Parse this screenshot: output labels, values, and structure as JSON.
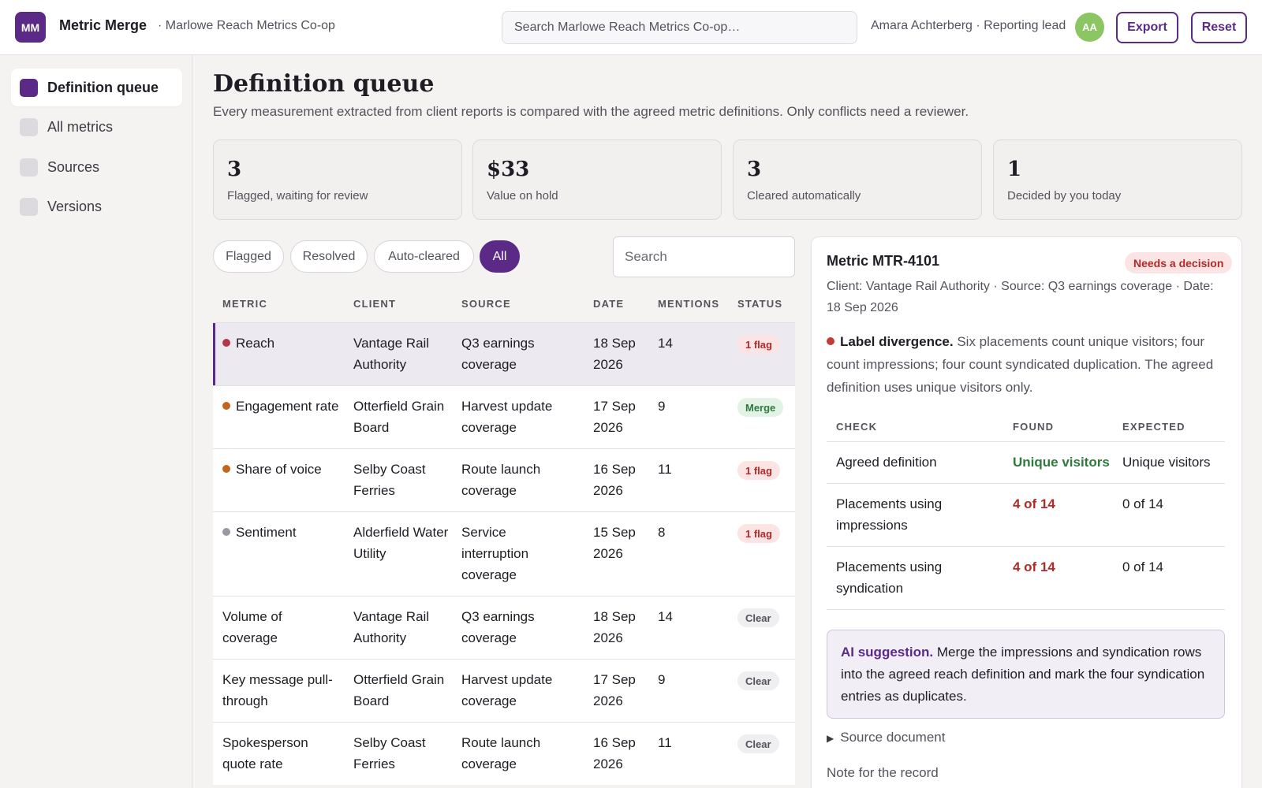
{
  "app": {
    "logo": "MM",
    "name": "Metric Merge",
    "org": "· Marlowe Reach Metrics Co-op",
    "search_placeholder": "Search Marlowe Reach Metrics Co-op…",
    "user": "Amara Achterberg · Reporting lead",
    "avatar": "AA",
    "export_label": "Export",
    "reset_label": "Reset"
  },
  "sidebar": {
    "items": [
      {
        "label": "Definition queue",
        "active": true
      },
      {
        "label": "All metrics",
        "active": false
      },
      {
        "label": "Sources",
        "active": false
      },
      {
        "label": "Versions",
        "active": false
      }
    ]
  },
  "page": {
    "title": "Definition queue",
    "subtitle": "Every measurement extracted from client reports is compared with the agreed metric definitions. Only conflicts need a reviewer."
  },
  "stats": [
    {
      "value": "3",
      "label": "Flagged, waiting for review"
    },
    {
      "value": "$33",
      "label": "Value on hold"
    },
    {
      "value": "3",
      "label": "Cleared automatically"
    },
    {
      "value": "1",
      "label": "Decided by you today"
    }
  ],
  "filters": {
    "chips": [
      "Flagged",
      "Resolved",
      "Auto-cleared",
      "All"
    ],
    "active": "All",
    "search_placeholder": "Search"
  },
  "table": {
    "columns": [
      "METRIC",
      "CLIENT",
      "SOURCE",
      "DATE",
      "MENTIONS",
      "STATUS"
    ],
    "rows": [
      {
        "metric": "Reach",
        "dot": "#b3374a",
        "client": "Vantage Rail Authority",
        "source": "Q3 earnings coverage",
        "date": "18 Sep 2026",
        "mentions": "14",
        "status": "1 flag",
        "kind": "flag",
        "selected": true
      },
      {
        "metric": "Engagement rate",
        "dot": "#c2651f",
        "client": "Otterfield Grain Board",
        "source": "Harvest update coverage",
        "date": "17 Sep 2026",
        "mentions": "9",
        "status": "Merge",
        "kind": "merge",
        "selected": false
      },
      {
        "metric": "Share of voice",
        "dot": "#c2651f",
        "client": "Selby Coast Ferries",
        "source": "Route launch coverage",
        "date": "16 Sep 2026",
        "mentions": "11",
        "status": "1 flag",
        "kind": "flag",
        "selected": false
      },
      {
        "metric": "Sentiment",
        "dot": "#9a98a3",
        "client": "Alderfield Water Utility",
        "source": "Service interruption coverage",
        "date": "15 Sep 2026",
        "mentions": "8",
        "status": "1 flag",
        "kind": "flag",
        "selected": false
      },
      {
        "metric": "Volume of coverage",
        "dot": "",
        "client": "Vantage Rail Authority",
        "source": "Q3 earnings coverage",
        "date": "18 Sep 2026",
        "mentions": "14",
        "status": "Clear",
        "kind": "clear",
        "selected": false
      },
      {
        "metric": "Key message pull-through",
        "dot": "",
        "client": "Otterfield Grain Board",
        "source": "Harvest update coverage",
        "date": "17 Sep 2026",
        "mentions": "9",
        "status": "Clear",
        "kind": "clear",
        "selected": false
      },
      {
        "metric": "Spokesperson quote rate",
        "dot": "",
        "client": "Selby Coast Ferries",
        "source": "Route launch coverage",
        "date": "16 Sep 2026",
        "mentions": "11",
        "status": "Clear",
        "kind": "clear",
        "selected": false
      }
    ]
  },
  "detail": {
    "title": "Metric MTR-4101",
    "status": "Needs a decision",
    "meta": "Client: Vantage Rail Authority · Source: Q3 earnings coverage · Date: 18 Sep 2026",
    "issue_title": "Label divergence.",
    "issue_text": " Six placements count unique visitors; four count impressions; four count syndicated duplication. The agreed definition uses unique visitors only.",
    "checks_columns": [
      "CHECK",
      "FOUND",
      "EXPECTED"
    ],
    "checks": [
      {
        "check": "Agreed definition",
        "found": "Unique visitors",
        "expected": "Unique visitors",
        "ok": true
      },
      {
        "check": "Placements using impressions",
        "found": "4 of 14",
        "expected": "0 of 14",
        "ok": false
      },
      {
        "check": "Placements using syndication",
        "found": "4 of 14",
        "expected": "0 of 14",
        "ok": false
      }
    ],
    "ai_title": "AI suggestion.",
    "ai_text": " Merge the impressions and syndication rows into the agreed reach definition and mark the four syndication entries as duplicates.",
    "source_doc": "Source document",
    "note_label": "Note for the record"
  }
}
